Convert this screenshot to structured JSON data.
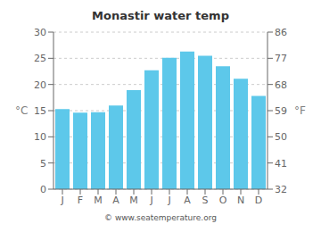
{
  "chart_data": {
    "type": "bar",
    "title": "Monastir water temp",
    "categories": [
      "J",
      "F",
      "M",
      "A",
      "M",
      "J",
      "J",
      "A",
      "S",
      "O",
      "N",
      "D"
    ],
    "values": [
      15.3,
      14.6,
      14.7,
      16.0,
      18.9,
      22.7,
      25.1,
      26.3,
      25.5,
      23.5,
      21.1,
      17.8
    ],
    "color": "#5DC8EA",
    "ylim": [
      0,
      30
    ],
    "yticks": [
      0,
      5,
      10,
      15,
      20,
      25,
      30
    ],
    "ylabel": "°C",
    "y2lim": [
      32,
      86
    ],
    "y2ticks": [
      32,
      41,
      50,
      59,
      68,
      77,
      86
    ],
    "y2label": "°F",
    "annotations": [
      "© www.seatemperature.org"
    ],
    "grid": true
  }
}
